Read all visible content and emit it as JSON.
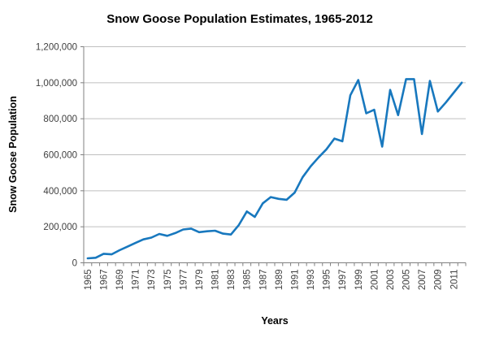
{
  "chart_data": {
    "type": "line",
    "title": "Snow Goose Population Estimates, 1965-2012",
    "xlabel": "Years",
    "ylabel": "Snow Goose Population",
    "x": [
      1965,
      1966,
      1967,
      1968,
      1969,
      1970,
      1971,
      1972,
      1973,
      1974,
      1975,
      1976,
      1977,
      1978,
      1979,
      1980,
      1981,
      1982,
      1983,
      1984,
      1985,
      1986,
      1987,
      1988,
      1989,
      1990,
      1991,
      1992,
      1993,
      1994,
      1995,
      1996,
      1997,
      1998,
      1999,
      2000,
      2001,
      2002,
      2003,
      2004,
      2005,
      2006,
      2007,
      2008,
      2009,
      2010,
      2011,
      2012
    ],
    "series": [
      {
        "name": "Snow Goose Population",
        "values": [
          25000,
          28000,
          50000,
          47000,
          70000,
          90000,
          110000,
          130000,
          140000,
          160000,
          150000,
          165000,
          185000,
          190000,
          170000,
          175000,
          178000,
          162000,
          157000,
          210000,
          285000,
          255000,
          330000,
          365000,
          355000,
          350000,
          390000,
          475000,
          535000,
          585000,
          630000,
          690000,
          675000,
          930000,
          1015000,
          830000,
          850000,
          645000,
          960000,
          820000,
          1020000,
          1020000,
          715000,
          1010000,
          840000,
          890000,
          945000,
          1000000
        ]
      }
    ],
    "ylim": [
      0,
      1200000
    ],
    "ytick_values": [
      0,
      200000,
      400000,
      600000,
      800000,
      1000000,
      1200000
    ],
    "ytick_labels": [
      "0",
      "200,000",
      "400,000",
      "600,000",
      "800,000",
      "1,000,000",
      "1,200,000"
    ],
    "xtick_labels": [
      "1965",
      "1967",
      "1969",
      "1971",
      "1973",
      "1975",
      "1977",
      "1979",
      "1981",
      "1983",
      "1985",
      "1987",
      "1989",
      "1991",
      "1993",
      "1995",
      "1997",
      "1999",
      "2001",
      "2003",
      "2005",
      "2007",
      "2009",
      "2011"
    ],
    "grid": "horizontal",
    "legend": "none",
    "colors": {
      "line": "#1878BE",
      "gridline": "#BFBFBF",
      "axis": "#808080",
      "tick_text": "#404040",
      "title_text": "#000000"
    }
  }
}
